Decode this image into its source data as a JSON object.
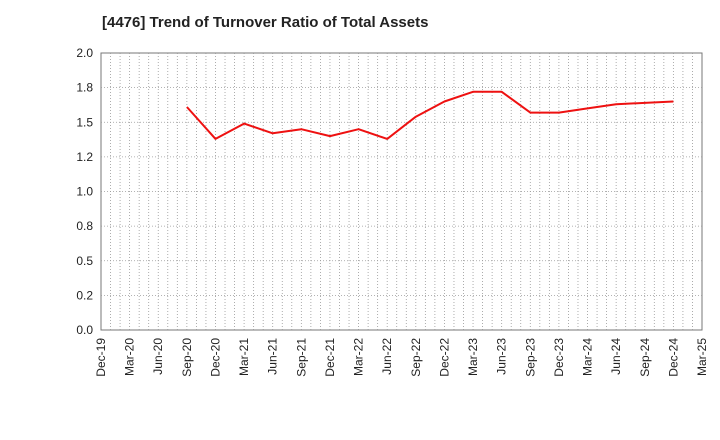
{
  "chart_data": {
    "type": "line",
    "title": "[4476]  Trend of Turnover Ratio of Total Assets",
    "xlabel": "",
    "ylabel": "",
    "categories": [
      "Dec-19",
      "Mar-20",
      "Jun-20",
      "Sep-20",
      "Dec-20",
      "Mar-21",
      "Jun-21",
      "Sep-21",
      "Dec-21",
      "Mar-22",
      "Jun-22",
      "Sep-22",
      "Dec-22",
      "Mar-23",
      "Jun-23",
      "Sep-23",
      "Dec-23",
      "Mar-24",
      "Jun-24",
      "Sep-24",
      "Dec-24",
      "Mar-25"
    ],
    "y_tick_labels": [
      "0.0",
      "0.2",
      "0.5",
      "0.8",
      "1.0",
      "1.2",
      "1.5",
      "1.8",
      "2.0"
    ],
    "ylim": [
      0,
      2.0
    ],
    "grid": true,
    "series": [
      {
        "color": "#ee1111",
        "values": [
          null,
          null,
          null,
          1.61,
          1.38,
          1.49,
          1.42,
          1.45,
          1.4,
          1.45,
          1.38,
          1.54,
          1.65,
          1.72,
          1.72,
          1.57,
          1.57,
          1.6,
          1.63,
          1.64,
          1.65,
          null
        ]
      }
    ]
  }
}
